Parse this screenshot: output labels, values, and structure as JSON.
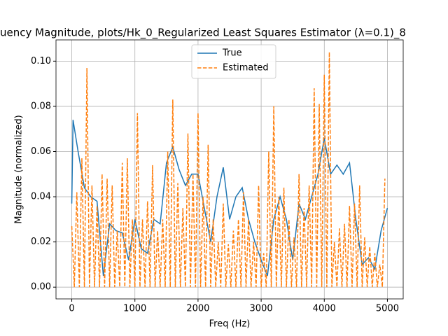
{
  "chart_data": {
    "type": "line",
    "title": "uency Magnitude, plots/Hk_0_Regularized Least Squares Estimator (λ=0.1)_8",
    "x_label": "Freq (Hz)",
    "y_label": "Magnitude (normalized)",
    "xlim": [
      -250,
      5250
    ],
    "ylim": [
      -0.0052,
      0.1094
    ],
    "xticks": [
      0,
      1000,
      2000,
      3000,
      4000,
      5000
    ],
    "yticks": [
      {
        "value": 0,
        "label": "0.00"
      },
      {
        "value": 0.02,
        "label": "0.02"
      },
      {
        "value": 0.04,
        "label": "0.04"
      },
      {
        "value": 0.06,
        "label": "0.06"
      },
      {
        "value": 0.08,
        "label": "0.08"
      },
      {
        "value": 0.1,
        "label": "0.10"
      }
    ],
    "grid": true,
    "legend": "upper center",
    "series": [
      {
        "name": "True",
        "color": "#1f77b4",
        "dash": false,
        "x": [
          0,
          20,
          100,
          200,
          300,
          400,
          500,
          600,
          700,
          800,
          900,
          1000,
          1100,
          1200,
          1300,
          1400,
          1500,
          1600,
          1700,
          1800,
          1900,
          2000,
          2100,
          2200,
          2300,
          2400,
          2500,
          2600,
          2700,
          2800,
          2900,
          3000,
          3100,
          3200,
          3300,
          3400,
          3500,
          3600,
          3700,
          3800,
          3900,
          4000,
          4100,
          4200,
          4300,
          4400,
          4500,
          4600,
          4700,
          4800,
          4900,
          5000
        ],
        "values": [
          0.037,
          0.074,
          0.06,
          0.044,
          0.04,
          0.038,
          0.005,
          0.028,
          0.025,
          0.024,
          0.012,
          0.03,
          0.017,
          0.015,
          0.03,
          0.028,
          0.055,
          0.062,
          0.052,
          0.045,
          0.05,
          0.05,
          0.035,
          0.02,
          0.04,
          0.053,
          0.03,
          0.04,
          0.044,
          0.03,
          0.02,
          0.012,
          0.005,
          0.03,
          0.04,
          0.03,
          0.012,
          0.037,
          0.03,
          0.04,
          0.05,
          0.066,
          0.05,
          0.054,
          0.05,
          0.055,
          0.03,
          0.01,
          0.013,
          0.008,
          0.025,
          0.035
        ]
      },
      {
        "name": "Estimated",
        "color": "#ff7f0e",
        "dash": true,
        "x": [
          0,
          40,
          80,
          120,
          160,
          200,
          240,
          280,
          320,
          360,
          400,
          440,
          480,
          520,
          560,
          600,
          640,
          680,
          720,
          760,
          800,
          840,
          880,
          920,
          960,
          1000,
          1040,
          1080,
          1120,
          1160,
          1200,
          1240,
          1280,
          1320,
          1360,
          1400,
          1440,
          1480,
          1520,
          1560,
          1600,
          1640,
          1680,
          1720,
          1760,
          1800,
          1840,
          1880,
          1920,
          1960,
          2000,
          2040,
          2080,
          2120,
          2160,
          2200,
          2240,
          2280,
          2320,
          2360,
          2400,
          2440,
          2480,
          2520,
          2560,
          2600,
          2640,
          2680,
          2720,
          2760,
          2800,
          2840,
          2880,
          2920,
          2960,
          3000,
          3040,
          3080,
          3120,
          3160,
          3200,
          3240,
          3280,
          3320,
          3360,
          3400,
          3440,
          3480,
          3520,
          3560,
          3600,
          3640,
          3680,
          3720,
          3760,
          3800,
          3840,
          3880,
          3920,
          3960,
          4000,
          4040,
          4080,
          4120,
          4160,
          4200,
          4240,
          4280,
          4320,
          4360,
          4400,
          4440,
          4480,
          4520,
          4560,
          4600,
          4640,
          4680,
          4720,
          4760,
          4800,
          4840,
          4880,
          4920,
          4960
        ],
        "values": [
          0.027,
          0,
          0.042,
          0,
          0.057,
          0,
          0.097,
          0,
          0.045,
          0,
          0.036,
          0,
          0.05,
          0,
          0.048,
          0,
          0.045,
          0,
          0.025,
          0,
          0.055,
          0,
          0.057,
          0,
          0.03,
          0,
          0.077,
          0,
          0.03,
          0,
          0.038,
          0,
          0.054,
          0,
          0.025,
          0,
          0.03,
          0,
          0.06,
          0,
          0.083,
          0,
          0.046,
          0,
          0.035,
          0,
          0.068,
          0,
          0.05,
          0,
          0.077,
          0,
          0.04,
          0,
          0.063,
          0,
          0.03,
          0,
          0.02,
          0,
          0.037,
          0,
          0.019,
          0,
          0.025,
          0,
          0.03,
          0,
          0.042,
          0,
          0.03,
          0,
          0.02,
          0,
          0.045,
          0,
          0.015,
          0,
          0.06,
          0,
          0.08,
          0,
          0.04,
          0,
          0.044,
          0,
          0.03,
          0,
          0.022,
          0,
          0.05,
          0,
          0.035,
          0,
          0.045,
          0,
          0.088,
          0,
          0.081,
          0,
          0.094,
          0,
          0.104,
          0,
          0.02,
          0,
          0.026,
          0,
          0.028,
          0,
          0.036,
          0,
          0.037,
          0,
          0.045,
          0,
          0.022,
          0,
          0.018,
          0,
          0.015,
          0,
          0.01,
          0,
          0.048
        ]
      }
    ]
  }
}
